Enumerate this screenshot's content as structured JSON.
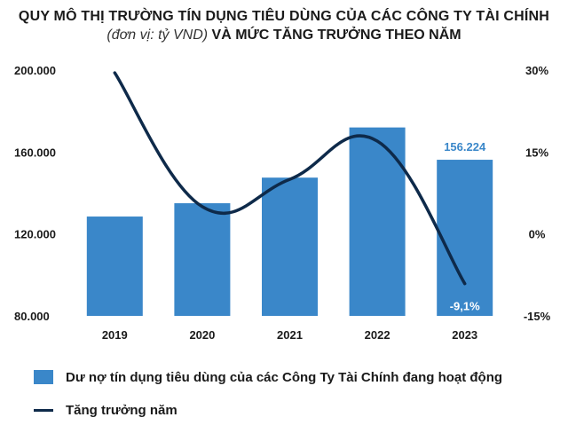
{
  "header": {
    "title": "QUY MÔ THỊ TRƯỜNG TÍN DỤNG TIÊU DÙNG CỦA CÁC CÔNG TY TÀI CHÍNH",
    "subtitle_unit": "(đơn vị: tỷ VND)",
    "subtitle_rest": "VÀ MỨC TĂNG TRƯỞNG THEO NĂM"
  },
  "colors": {
    "bar": "#3a87c9",
    "line": "#0e2a4a",
    "bar_label": "#3a87c9",
    "line_label": "#ffffff"
  },
  "chart_data": {
    "type": "bar",
    "categories": [
      "2019",
      "2020",
      "2021",
      "2022",
      "2023"
    ],
    "series": [
      {
        "name": "Dư nợ tín dụng tiêu dùng của các Công Ty Tài Chính đang hoạt động",
        "type": "bar",
        "axis": "left",
        "values": [
          128500,
          135000,
          147500,
          172000,
          156224
        ]
      },
      {
        "name": "Tăng trưởng năm",
        "type": "line",
        "axis": "right",
        "values": [
          29.5,
          5,
          10,
          17,
          -9.1
        ]
      }
    ],
    "y_left": {
      "ylim": [
        80000,
        200000
      ],
      "ticks": [
        80000,
        120000,
        160000,
        200000
      ],
      "tick_labels": [
        "80.000",
        "120.000",
        "160.000",
        "200.000"
      ]
    },
    "y_right": {
      "ylim": [
        -15,
        30
      ],
      "ticks": [
        -15,
        0,
        15,
        30
      ],
      "tick_labels": [
        "-15%",
        "0%",
        "15%",
        "30%"
      ]
    },
    "data_labels": [
      {
        "series": 0,
        "index": 4,
        "text": "156.224"
      },
      {
        "series": 1,
        "index": 4,
        "text": "-9,1%"
      }
    ],
    "grid": false,
    "legend_position": "bottom-left"
  }
}
